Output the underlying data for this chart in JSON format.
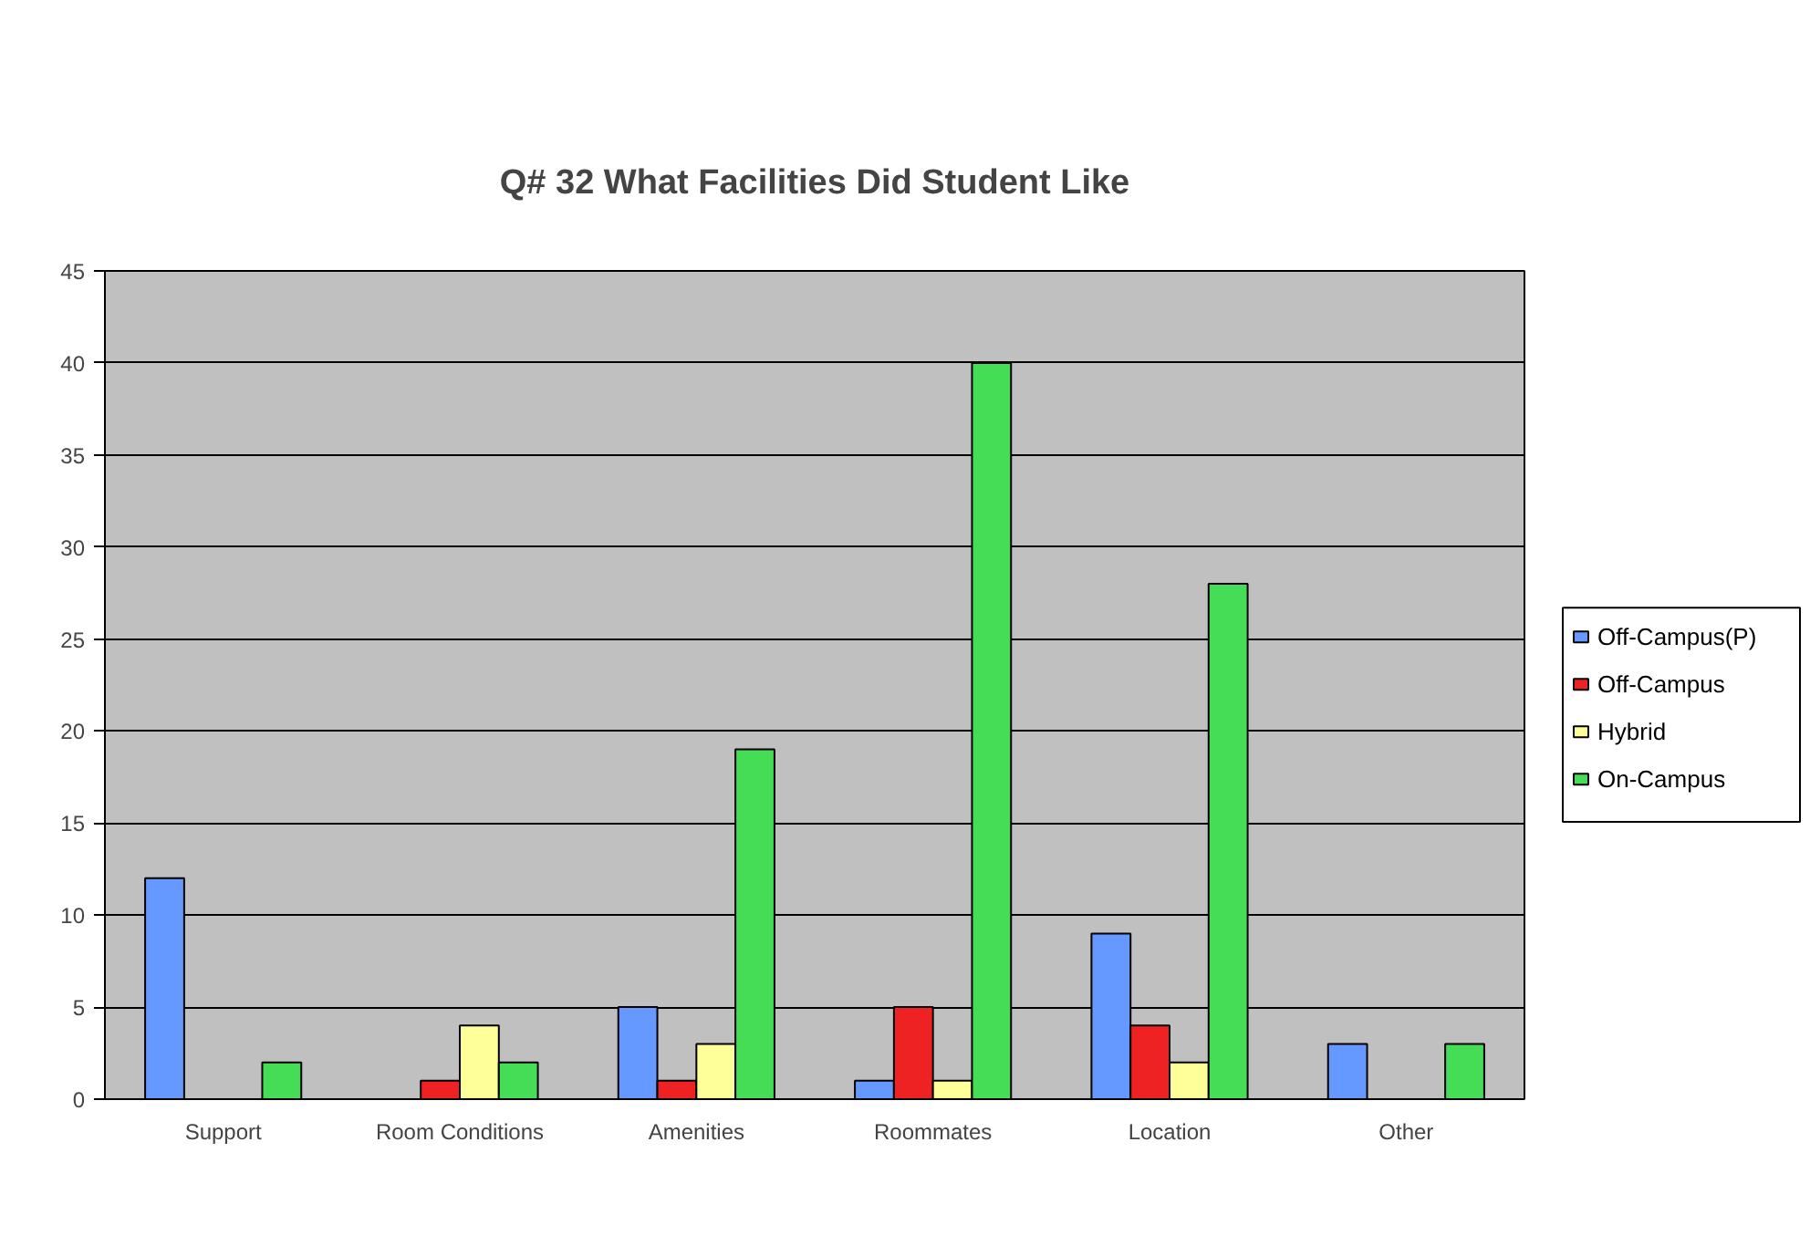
{
  "chart_data": {
    "type": "bar",
    "title": "Q# 32 What Facilities Did Student Like",
    "categories": [
      "Support",
      "Room Conditions",
      "Amenities",
      "Roommates",
      "Location",
      "Other"
    ],
    "series": [
      {
        "name": "Off-Campus(P)",
        "color": "#6699ff",
        "values": [
          12,
          0,
          5,
          1,
          9,
          3
        ]
      },
      {
        "name": "Off-Campus",
        "color": "#ee2222",
        "values": [
          0,
          1,
          1,
          5,
          4,
          0
        ]
      },
      {
        "name": "Hybrid",
        "color": "#ffff99",
        "values": [
          0,
          4,
          3,
          1,
          2,
          0
        ]
      },
      {
        "name": "On-Campus",
        "color": "#44dd55",
        "values": [
          2,
          2,
          19,
          40,
          28,
          3
        ]
      }
    ],
    "ylim": [
      0,
      45
    ],
    "yticks": [
      0,
      5,
      10,
      15,
      20,
      25,
      30,
      35,
      40,
      45
    ],
    "grid": "y",
    "legend": "right"
  }
}
